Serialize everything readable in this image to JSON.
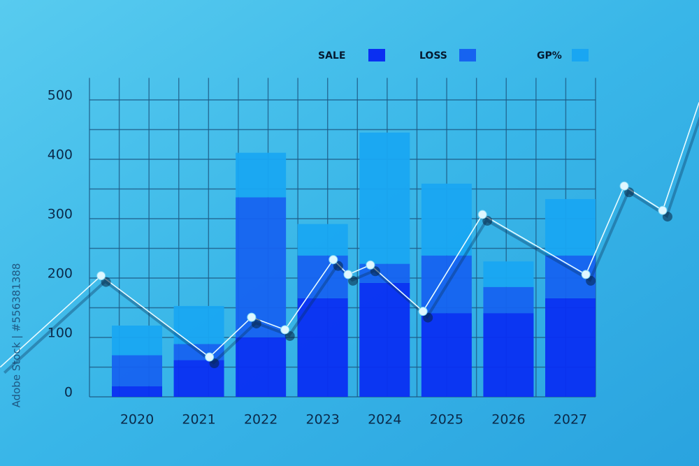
{
  "chart_data": {
    "type": "stacked_bar_line",
    "categories": [
      "2020",
      "2021",
      "2022",
      "2023",
      "2024",
      "2025",
      "2026",
      "2027"
    ],
    "series": [
      {
        "name": "SALE",
        "color": "#0a2ff2",
        "values": [
          18,
          62,
          100,
          166,
          192,
          141,
          141,
          166
        ]
      },
      {
        "name": "LOSS",
        "color": "#1663f0",
        "values": [
          52,
          27,
          236,
          72,
          32,
          97,
          44,
          72
        ]
      },
      {
        "name": "GP%",
        "color": "#19a6f2",
        "values": [
          50,
          64,
          75,
          53,
          221,
          121,
          43,
          95
        ]
      }
    ],
    "line": {
      "color": "#e8fbff",
      "x": [
        2017.79,
        2019.42,
        2021.17,
        2021.85,
        2022.39,
        2023.17,
        2023.41,
        2023.77,
        2024.62,
        2025.58,
        2027.25,
        2027.87,
        2028.49,
        2029.08
      ],
      "values": [
        50,
        204,
        67,
        134,
        113,
        231,
        206,
        222,
        144,
        307,
        206,
        355,
        314,
        496
      ]
    },
    "ylim": [
      0,
      537
    ],
    "yticks": [
      0,
      100,
      200,
      300,
      400,
      500
    ],
    "grid": true,
    "grid_step": 50,
    "legend": "top",
    "watermark": "Adobe Stock | #556381388"
  }
}
